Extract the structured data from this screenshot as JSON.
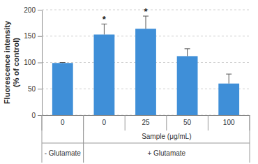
{
  "chart_data": {
    "type": "bar",
    "y_label": [
      "Fluorescence intensity",
      "(% of control)"
    ],
    "x_label": "Sample (μg/mL)",
    "categories": [
      "0",
      "0",
      "25",
      "50",
      "100"
    ],
    "values": [
      99,
      153,
      164,
      112,
      60
    ],
    "errors": [
      1,
      20,
      24,
      14,
      18
    ],
    "significance": [
      null,
      "*",
      "*",
      null,
      null
    ],
    "groups": [
      {
        "label": "- Glutamate",
        "count": 1
      },
      {
        "label": "+ Glutamate",
        "count": 4
      }
    ],
    "color": "#3f8fd8",
    "ylim": [
      0,
      200
    ],
    "yticks": [
      0,
      50,
      100,
      150,
      200
    ],
    "grid": true
  }
}
